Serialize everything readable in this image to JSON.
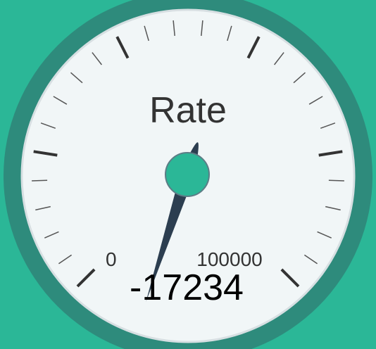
{
  "gauge": {
    "title": "Rate",
    "min_label": "0",
    "max_label": "100000",
    "value_text": "-17234",
    "min": 0,
    "max": 100000,
    "value": -17234
  },
  "colors": {
    "background": "#2bb797",
    "outer_ring": "#2e8b7c",
    "face": "#f1f6f7",
    "face_edge": "#d7dfe2",
    "needle": "#2c3e50",
    "hub": "#2bb797",
    "hub_stroke": "#5c7d86",
    "major_tick": "#333333",
    "minor_tick": "#555555"
  }
}
